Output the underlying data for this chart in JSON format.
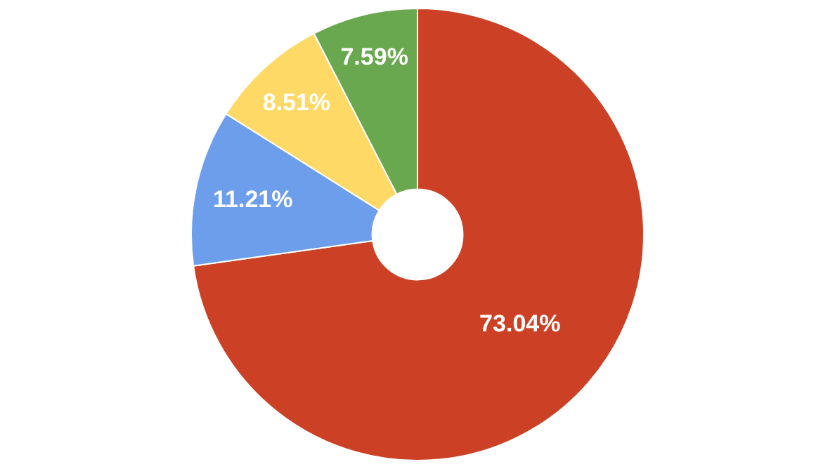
{
  "chart_data": {
    "type": "donut",
    "categories": [
      null,
      null,
      null,
      null
    ],
    "values": [
      73.04,
      11.21,
      8.51,
      7.59
    ],
    "colors": [
      "#cc4125",
      "#6d9eeb",
      "#ffd966",
      "#6aa84f"
    ],
    "value_labels": [
      "73.04%",
      "11.21%",
      "8.51%",
      "7.59%"
    ],
    "legend": false
  }
}
